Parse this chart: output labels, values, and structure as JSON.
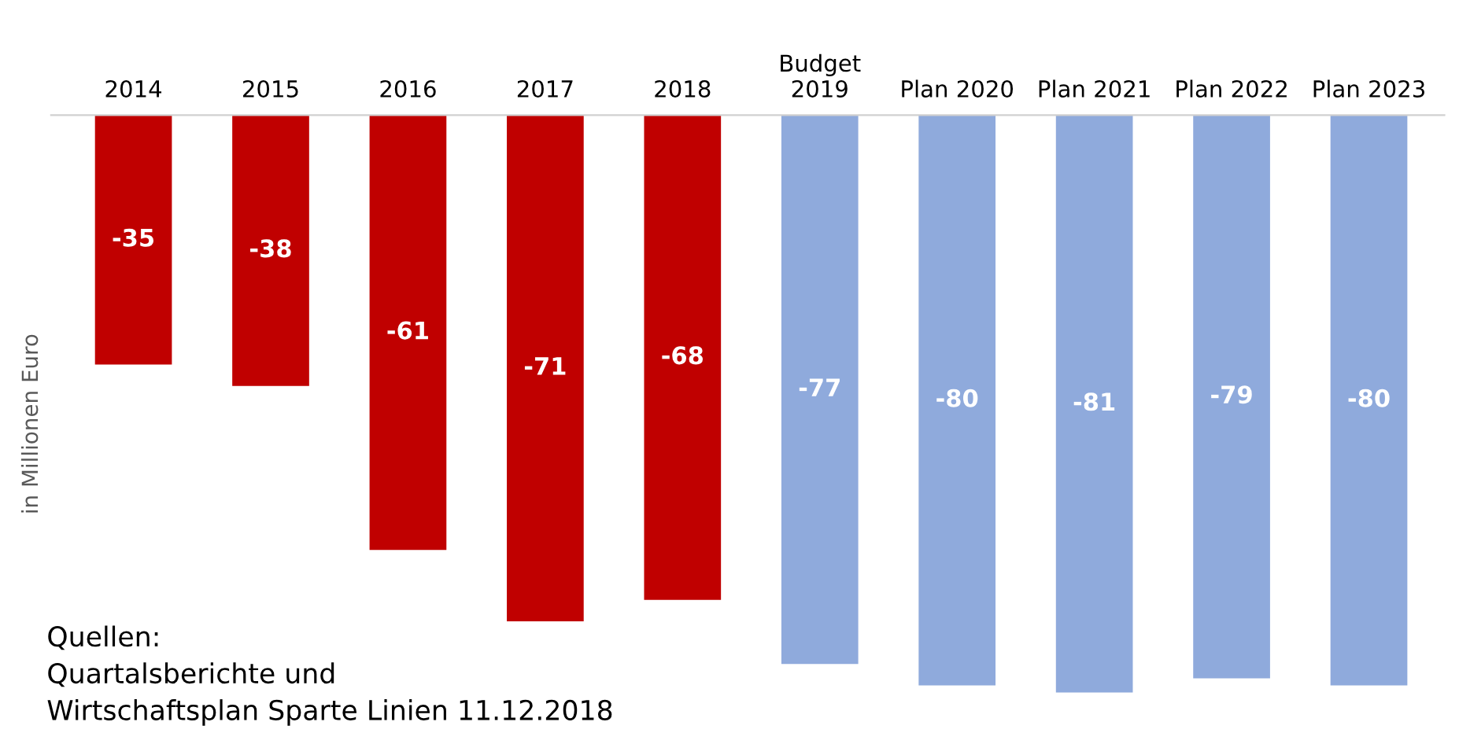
{
  "chart_data": {
    "type": "bar",
    "ylabel": "in Millionen Euro",
    "categories": [
      "2014",
      "2015",
      "2016",
      "2017",
      "2018",
      "Budget\n2019",
      "Plan 2020",
      "Plan 2021",
      "Plan 2022",
      "Plan 2023"
    ],
    "values": [
      -35,
      -38,
      -61,
      -71,
      -68,
      -77,
      -80,
      -81,
      -79,
      -80
    ],
    "colors": [
      "#c00000",
      "#c00000",
      "#c00000",
      "#c00000",
      "#c00000",
      "#8faadc",
      "#8faadc",
      "#8faadc",
      "#8faadc",
      "#8faadc"
    ],
    "data_labels": true,
    "tick_labels": "x",
    "grid": false,
    "legend": false,
    "annotations": [
      "Quellen:\nQuartalsberichte und\nWirtschaftsplan Sparte Linien 11.12.2018"
    ]
  }
}
